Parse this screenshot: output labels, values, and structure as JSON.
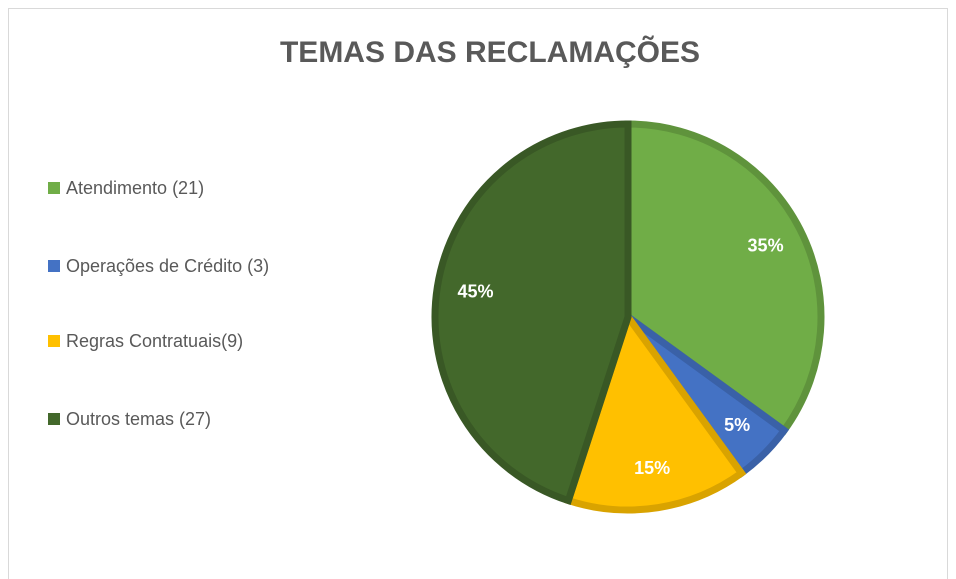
{
  "chart_data": {
    "type": "pie",
    "title": "TEMAS DAS RECLAMAÇÕES",
    "categories": [
      "Atendimento (21)",
      "Operações de Crédito (3)",
      "Regras Contratuais(9)",
      "Outros temas (27)"
    ],
    "values": [
      35,
      5,
      15,
      45
    ],
    "value_labels": [
      "35%",
      "5%",
      "15%",
      "45%"
    ],
    "colors": [
      "#70ad47",
      "#4472c4",
      "#ffc000",
      "#43682b"
    ],
    "legend": "left"
  }
}
